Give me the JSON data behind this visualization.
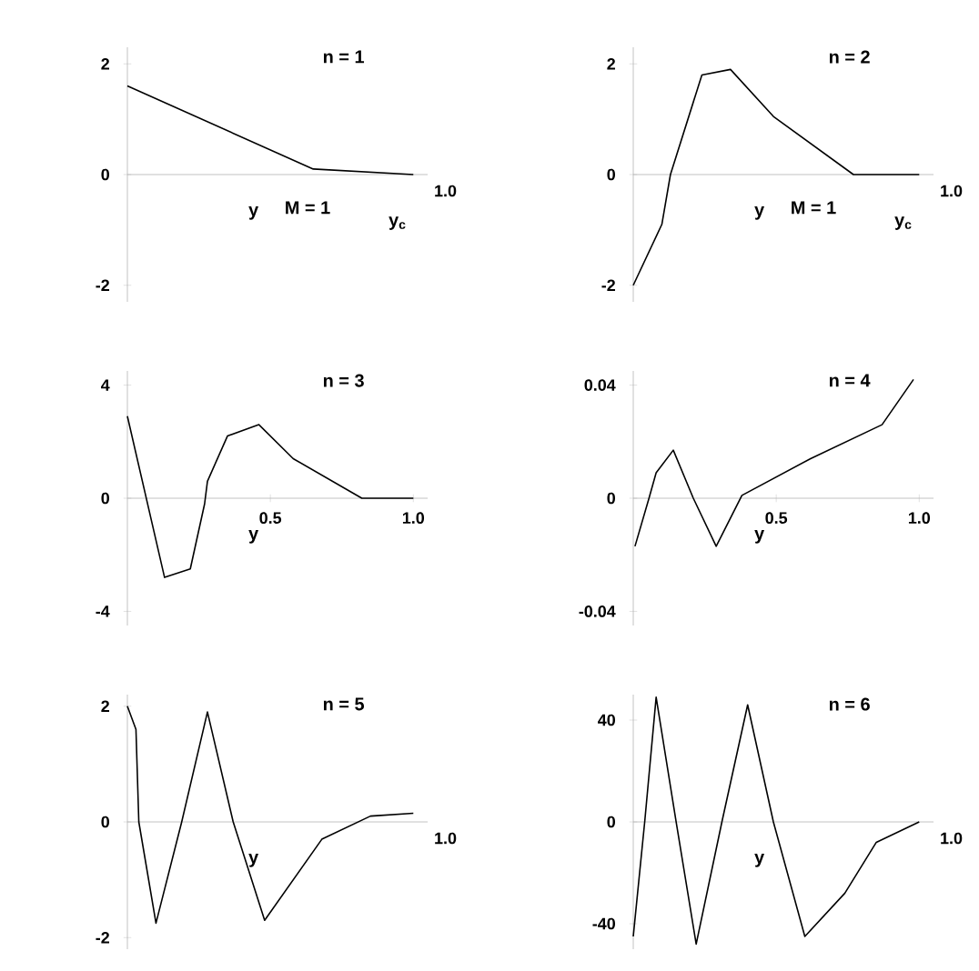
{
  "chart_data": [
    {
      "type": "line",
      "title": "n = 1",
      "xlabel": "y",
      "annotations": [
        "1.0",
        "M = 1",
        "y$_{c}$"
      ],
      "xlim": [
        0,
        1.05
      ],
      "ylim": [
        -2.3,
        2.3
      ],
      "yticks": [
        -2,
        0,
        2
      ],
      "color": "#000000",
      "x": [
        0,
        0.65,
        1.0
      ],
      "values": [
        1.6,
        0.1,
        0
      ]
    },
    {
      "type": "line",
      "title": "n = 2",
      "xlabel": "y",
      "annotations": [
        "1.0",
        "M = 1",
        "y$_{c}$"
      ],
      "xlim": [
        0,
        1.05
      ],
      "ylim": [
        -2.3,
        2.3
      ],
      "yticks": [
        -2,
        0,
        2
      ],
      "color": "#000000",
      "x": [
        0,
        0.1,
        0.13,
        0.24,
        0.34,
        0.49,
        0.77,
        1.0
      ],
      "values": [
        -2,
        -0.9,
        0,
        1.8,
        1.9,
        1.05,
        0,
        0
      ]
    },
    {
      "type": "line",
      "title": "n = 3",
      "xlabel": "y",
      "xlim": [
        0,
        1.05
      ],
      "ylim": [
        -4.5,
        4.5
      ],
      "xticks": [
        0.5,
        {
          "value": 1,
          "label": "1.0"
        }
      ],
      "yticks": [
        -4,
        0,
        4
      ],
      "color": "#000000",
      "x": [
        0,
        0.13,
        0.22,
        0.27,
        0.28,
        0.35,
        0.46,
        0.58,
        0.82,
        1.0
      ],
      "values": [
        2.9,
        -2.8,
        -2.5,
        -0.2,
        0.6,
        2.2,
        2.6,
        1.4,
        0,
        0
      ]
    },
    {
      "type": "line",
      "title": "n = 4",
      "xlabel": "y",
      "xlim": [
        0,
        1.05
      ],
      "ylim": [
        -0.045,
        0.045
      ],
      "xticks": [
        0.5,
        {
          "value": 1,
          "label": "1.0"
        }
      ],
      "yticks": [
        -0.04,
        0,
        0.04
      ],
      "color": "#000000",
      "x": [
        0.006,
        0.055,
        0.08,
        0.14,
        0.21,
        0.29,
        0.38,
        0.62,
        0.87,
        0.98
      ],
      "values": [
        -0.017,
        0,
        0.009,
        0.017,
        0,
        -0.017,
        0.001,
        0.014,
        0.026,
        0.042
      ]
    },
    {
      "type": "line",
      "title": "n = 5",
      "xlabel": "y",
      "annotations": [
        "1.0"
      ],
      "xlim": [
        0,
        1.05
      ],
      "ylim": [
        -2.2,
        2.2
      ],
      "yticks": [
        -2,
        0,
        2
      ],
      "color": "#000000",
      "x": [
        0,
        0.03,
        0.04,
        0.1,
        0.19,
        0.28,
        0.37,
        0.48,
        0.68,
        0.85,
        1.0
      ],
      "values": [
        2.0,
        1.6,
        0,
        -1.75,
        0,
        1.9,
        0,
        -1.7,
        -0.3,
        0.1,
        0.15
      ]
    },
    {
      "type": "line",
      "title": "n = 6",
      "xlabel": "y",
      "annotations": [
        "1.0"
      ],
      "xlim": [
        0,
        1.05
      ],
      "ylim": [
        -50,
        50
      ],
      "yticks": [
        -40,
        0,
        40
      ],
      "color": "#000000",
      "x": [
        0,
        0.04,
        0.08,
        0.15,
        0.22,
        0.31,
        0.4,
        0.49,
        0.6,
        0.74,
        0.85,
        1.0
      ],
      "values": [
        -45,
        0,
        49,
        0,
        -48,
        0,
        46,
        0,
        -45,
        -28,
        -8,
        0
      ]
    }
  ]
}
